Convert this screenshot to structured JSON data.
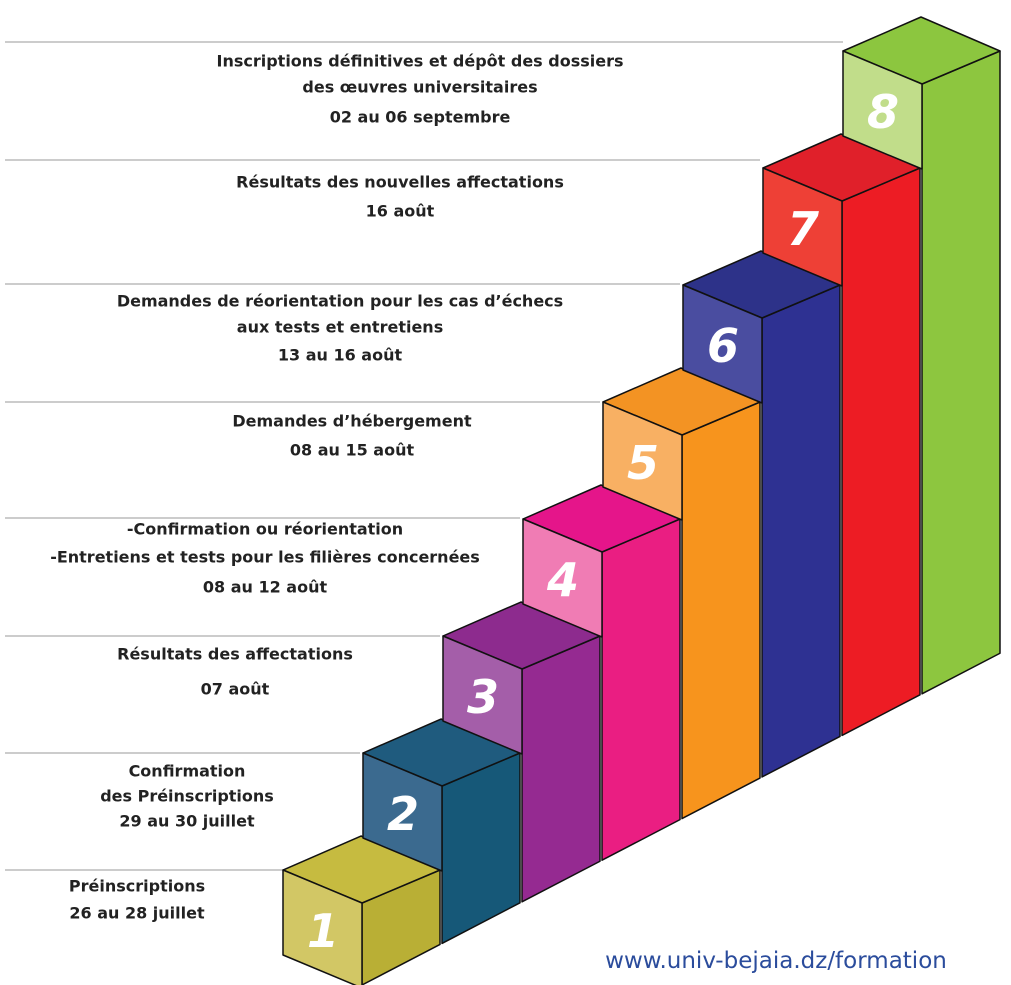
{
  "steps": [
    {
      "number": "1",
      "lines": [
        "Préinscriptions",
        "26 au 28 juillet"
      ]
    },
    {
      "number": "2",
      "lines": [
        "Confirmation",
        "des Préinscriptions",
        "29 au 30 juillet"
      ]
    },
    {
      "number": "3",
      "lines": [
        "Résultats des affectations",
        "07 août"
      ]
    },
    {
      "number": "4",
      "lines": [
        "-Confirmation ou réorientation",
        "-Entretiens et tests  pour les filières concernées",
        "08 au 12 août"
      ]
    },
    {
      "number": "5",
      "lines": [
        "Demandes d’hébergement",
        "08 au 15 août"
      ]
    },
    {
      "number": "6",
      "lines": [
        "Demandes de réorientation pour les cas d’échecs",
        "aux tests et entretiens",
        "13 au 16 août"
      ]
    },
    {
      "number": "7",
      "lines": [
        "Résultats des nouvelles  affectations",
        "16 août"
      ]
    },
    {
      "number": "8",
      "lines": [
        "Inscriptions définitives  et dépôt des dossiers",
        "des œuvres universitaires",
        "02 au 06 septembre"
      ]
    }
  ],
  "url": "www.univ-bejaia.dz/formation"
}
